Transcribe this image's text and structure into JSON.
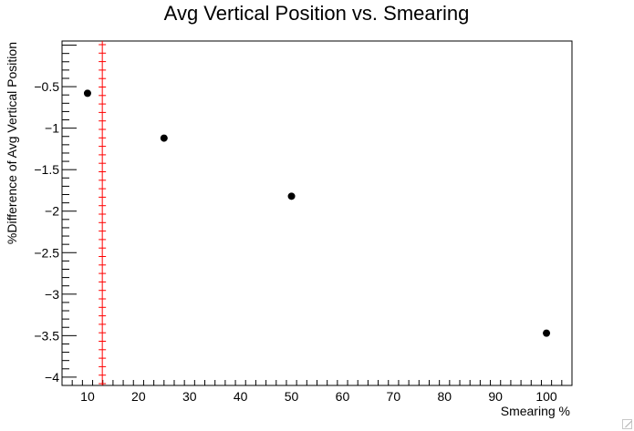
{
  "chart_data": {
    "type": "scatter",
    "title": "Avg Vertical Position vs. Smearing",
    "xlabel": "Smearing %",
    "ylabel": "%Difference of Avg Vertical Position",
    "xlim": [
      5,
      105
    ],
    "ylim": [
      -4.1,
      0.05
    ],
    "x_ticks": [
      10,
      20,
      30,
      40,
      50,
      60,
      70,
      80,
      90,
      100
    ],
    "x_tick_labels": [
      "10",
      "20",
      "30",
      "40",
      "50",
      "60",
      "70",
      "80",
      "90",
      "100"
    ],
    "y_ticks": [
      -0.5,
      -1,
      -1.5,
      -2,
      -2.5,
      -3,
      -3.5,
      -4
    ],
    "y_tick_labels": [
      "−0.5",
      "−1",
      "−1.5",
      "−2",
      "−2.5",
      "−3",
      "−3.5",
      "−4"
    ],
    "grid": false,
    "legend": "none",
    "series": [
      {
        "color": "#000000",
        "marker": "circle",
        "points": [
          {
            "x": 10,
            "y": -0.58
          },
          {
            "x": 25,
            "y": -1.12
          },
          {
            "x": 50,
            "y": -1.82
          },
          {
            "x": 100,
            "y": -3.47
          }
        ]
      }
    ],
    "reference_line": {
      "orientation": "vertical",
      "x": 12.9,
      "color": "#ff0000",
      "style": "crosses"
    }
  }
}
